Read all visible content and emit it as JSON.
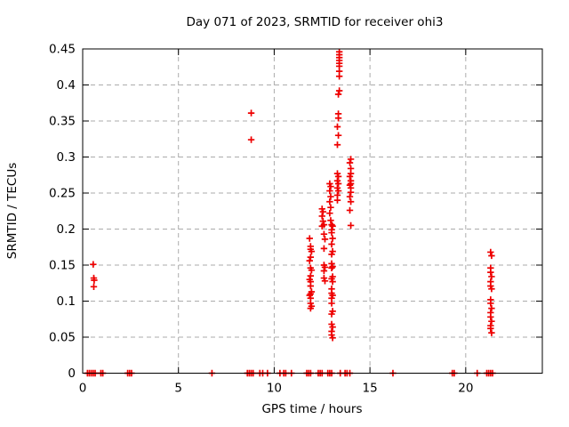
{
  "title": "Day 071 of 2023, SRMTID for receiver ohi3",
  "x_axis": {
    "label": "GPS time / hours",
    "min": 0,
    "max": 24,
    "ticks": [
      {
        "v": 0,
        "label": "0"
      },
      {
        "v": 5,
        "label": "5"
      },
      {
        "v": 10,
        "label": "10"
      },
      {
        "v": 15,
        "label": "15"
      },
      {
        "v": 20,
        "label": "20"
      }
    ]
  },
  "y_axis": {
    "label": "SRMTID / TECUs",
    "min": 0,
    "max": 0.45,
    "ticks": [
      {
        "v": 0,
        "label": "0"
      },
      {
        "v": 0.05,
        "label": "0.05"
      },
      {
        "v": 0.1,
        "label": "0.1"
      },
      {
        "v": 0.15,
        "label": "0.15"
      },
      {
        "v": 0.2,
        "label": "0.2"
      },
      {
        "v": 0.25,
        "label": "0.25"
      },
      {
        "v": 0.3,
        "label": "0.3"
      },
      {
        "v": 0.35,
        "label": "0.35"
      },
      {
        "v": 0.4,
        "label": "0.4"
      },
      {
        "v": 0.45,
        "label": "0.45"
      }
    ]
  },
  "chart_data": {
    "type": "scatter",
    "title": "Day 071 of 2023, SRMTID for receiver ohi3",
    "xlabel": "GPS time / hours",
    "ylabel": "SRMTID / TECUs",
    "xlim": [
      0,
      24
    ],
    "ylim": [
      0,
      0.45
    ],
    "grid": true,
    "marker": {
      "shape": "plus",
      "color": "#ee0000",
      "size": 7.4
    },
    "series": [
      {
        "name": "SRMTID",
        "points": [
          [
            0.55,
            0.151
          ],
          [
            0.58,
            0.132
          ],
          [
            0.6,
            0.129
          ],
          [
            0.58,
            0.12
          ],
          [
            8.8,
            0.361
          ],
          [
            8.8,
            0.324
          ],
          [
            11.85,
            0.187
          ],
          [
            11.9,
            0.176
          ],
          [
            11.9,
            0.172
          ],
          [
            11.95,
            0.169
          ],
          [
            11.9,
            0.161
          ],
          [
            11.85,
            0.156
          ],
          [
            11.9,
            0.146
          ],
          [
            11.95,
            0.143
          ],
          [
            11.9,
            0.135
          ],
          [
            11.85,
            0.13
          ],
          [
            11.9,
            0.127
          ],
          [
            11.9,
            0.121
          ],
          [
            11.95,
            0.113
          ],
          [
            11.9,
            0.11
          ],
          [
            11.85,
            0.108
          ],
          [
            11.9,
            0.104
          ],
          [
            11.9,
            0.097
          ],
          [
            11.95,
            0.093
          ],
          [
            11.9,
            0.09
          ],
          [
            12.5,
            0.228
          ],
          [
            12.55,
            0.224
          ],
          [
            12.5,
            0.218
          ],
          [
            12.55,
            0.211
          ],
          [
            12.5,
            0.204
          ],
          [
            12.6,
            0.206
          ],
          [
            12.6,
            0.193
          ],
          [
            12.65,
            0.186
          ],
          [
            12.6,
            0.173
          ],
          [
            12.6,
            0.15
          ],
          [
            12.65,
            0.147
          ],
          [
            12.6,
            0.142
          ],
          [
            12.6,
            0.132
          ],
          [
            12.65,
            0.128
          ],
          [
            12.9,
            0.263
          ],
          [
            12.95,
            0.259
          ],
          [
            12.9,
            0.253
          ],
          [
            12.95,
            0.245
          ],
          [
            12.9,
            0.238
          ],
          [
            12.95,
            0.23
          ],
          [
            12.9,
            0.222
          ],
          [
            12.95,
            0.212
          ],
          [
            13.0,
            0.206
          ],
          [
            13.05,
            0.204
          ],
          [
            13.0,
            0.199
          ],
          [
            13.0,
            0.195
          ],
          [
            13.05,
            0.187
          ],
          [
            13.0,
            0.179
          ],
          [
            13.05,
            0.169
          ],
          [
            13.0,
            0.165
          ],
          [
            13.0,
            0.152
          ],
          [
            13.05,
            0.148
          ],
          [
            13.0,
            0.146
          ],
          [
            13.05,
            0.134
          ],
          [
            13.0,
            0.131
          ],
          [
            13.05,
            0.127
          ],
          [
            13.0,
            0.117
          ],
          [
            13.0,
            0.111
          ],
          [
            13.05,
            0.108
          ],
          [
            13.0,
            0.104
          ],
          [
            13.0,
            0.097
          ],
          [
            13.05,
            0.086
          ],
          [
            13.0,
            0.082
          ],
          [
            13.0,
            0.068
          ],
          [
            13.05,
            0.064
          ],
          [
            13.0,
            0.058
          ],
          [
            13.0,
            0.053
          ],
          [
            13.05,
            0.049
          ],
          [
            13.3,
            0.277
          ],
          [
            13.35,
            0.273
          ],
          [
            13.3,
            0.267
          ],
          [
            13.35,
            0.263
          ],
          [
            13.3,
            0.257
          ],
          [
            13.35,
            0.253
          ],
          [
            13.3,
            0.247
          ],
          [
            13.3,
            0.24
          ],
          [
            13.35,
            0.354
          ],
          [
            13.3,
            0.342
          ],
          [
            13.35,
            0.33
          ],
          [
            13.3,
            0.317
          ],
          [
            13.4,
            0.446
          ],
          [
            13.4,
            0.442
          ],
          [
            13.4,
            0.438
          ],
          [
            13.4,
            0.434
          ],
          [
            13.4,
            0.43
          ],
          [
            13.4,
            0.426
          ],
          [
            13.4,
            0.419
          ],
          [
            13.4,
            0.412
          ],
          [
            13.4,
            0.392
          ],
          [
            13.35,
            0.387
          ],
          [
            13.35,
            0.36
          ],
          [
            14.0,
            0.297
          ],
          [
            13.95,
            0.292
          ],
          [
            14.0,
            0.284
          ],
          [
            14.0,
            0.277
          ],
          [
            13.95,
            0.273
          ],
          [
            14.0,
            0.267
          ],
          [
            14.0,
            0.263
          ],
          [
            13.95,
            0.261
          ],
          [
            14.0,
            0.257
          ],
          [
            14.0,
            0.251
          ],
          [
            13.95,
            0.245
          ],
          [
            14.0,
            0.238
          ],
          [
            13.95,
            0.226
          ],
          [
            14.0,
            0.205
          ],
          [
            21.3,
            0.168
          ],
          [
            21.35,
            0.163
          ],
          [
            21.3,
            0.146
          ],
          [
            21.3,
            0.14
          ],
          [
            21.35,
            0.134
          ],
          [
            21.3,
            0.127
          ],
          [
            21.3,
            0.121
          ],
          [
            21.35,
            0.117
          ],
          [
            21.3,
            0.102
          ],
          [
            21.3,
            0.097
          ],
          [
            21.35,
            0.09
          ],
          [
            21.3,
            0.084
          ],
          [
            21.3,
            0.078
          ],
          [
            21.35,
            0.072
          ],
          [
            21.3,
            0.066
          ],
          [
            21.3,
            0.062
          ],
          [
            21.35,
            0.056
          ],
          [
            0.25,
            0
          ],
          [
            0.35,
            0
          ],
          [
            0.45,
            0
          ],
          [
            0.55,
            0
          ],
          [
            0.65,
            0
          ],
          [
            0.95,
            0
          ],
          [
            1.05,
            0
          ],
          [
            2.35,
            0
          ],
          [
            2.45,
            0
          ],
          [
            2.55,
            0
          ],
          [
            6.75,
            0
          ],
          [
            8.6,
            0
          ],
          [
            8.7,
            0
          ],
          [
            8.8,
            0
          ],
          [
            8.9,
            0
          ],
          [
            9.25,
            0
          ],
          [
            9.4,
            0
          ],
          [
            9.65,
            0
          ],
          [
            10.3,
            0
          ],
          [
            10.5,
            0
          ],
          [
            10.6,
            0
          ],
          [
            10.9,
            0
          ],
          [
            11.7,
            0
          ],
          [
            11.8,
            0
          ],
          [
            11.9,
            0
          ],
          [
            12.3,
            0
          ],
          [
            12.4,
            0
          ],
          [
            12.5,
            0
          ],
          [
            12.8,
            0
          ],
          [
            12.9,
            0
          ],
          [
            13.0,
            0
          ],
          [
            13.45,
            0
          ],
          [
            13.7,
            0
          ],
          [
            13.8,
            0
          ],
          [
            13.95,
            0
          ],
          [
            16.2,
            0
          ],
          [
            19.3,
            0
          ],
          [
            19.4,
            0
          ],
          [
            20.6,
            0
          ],
          [
            21.1,
            0
          ],
          [
            21.2,
            0
          ],
          [
            21.3,
            0
          ],
          [
            21.4,
            0
          ]
        ]
      }
    ]
  },
  "colors": {
    "marker": "#ee0000",
    "grid": "#ababab",
    "axis": "#000000"
  }
}
